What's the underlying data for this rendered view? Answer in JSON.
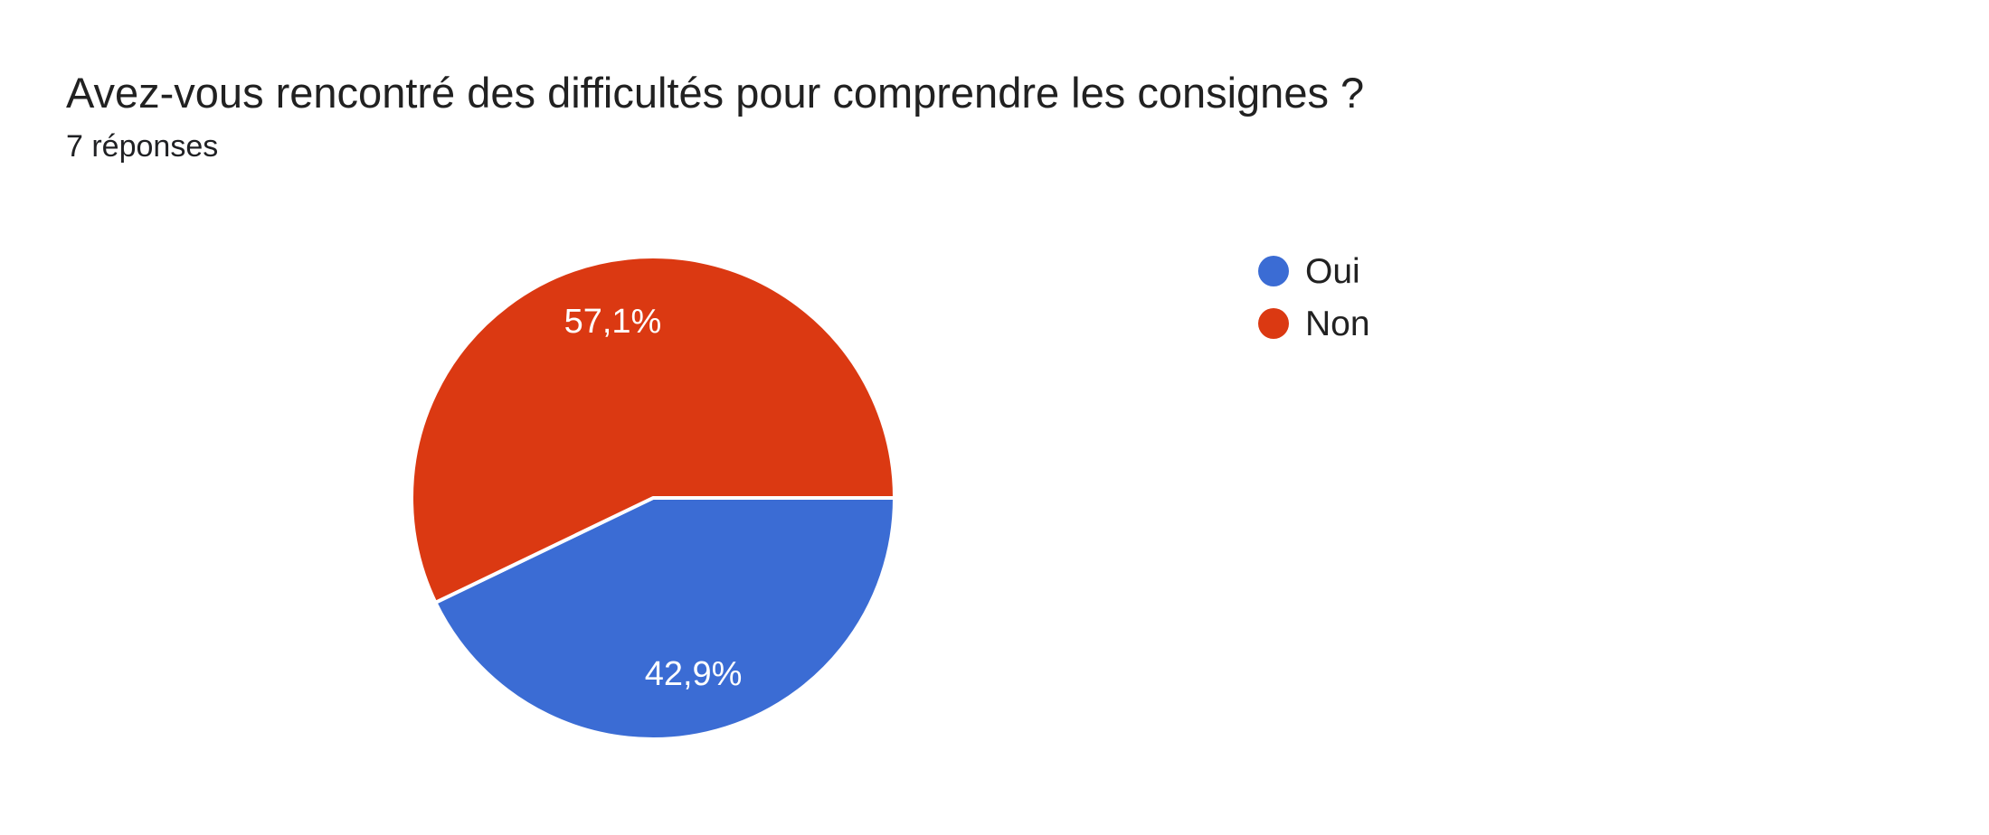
{
  "header": {
    "title": "Avez-vous rencontré des difficultés pour comprendre les consignes ?",
    "responses_label": "7 réponses"
  },
  "chart_data": {
    "type": "pie",
    "title": "Avez-vous rencontré des difficultés pour comprendre les consignes ?",
    "subtitle": "7 réponses",
    "total_responses": 7,
    "start_angle_deg": 0,
    "direction": "clockwise",
    "legend_position": "right",
    "slice_border_color": "#ffffff",
    "slice_label_color": "#ffffff",
    "background_color": "#ffffff",
    "series": [
      {
        "name": "Oui",
        "value": 3,
        "percent": 42.9,
        "percent_label": "42,9%",
        "color": "#3B6CD4"
      },
      {
        "name": "Non",
        "value": 4,
        "percent": 57.1,
        "percent_label": "57,1%",
        "color": "#DB3912"
      }
    ]
  }
}
